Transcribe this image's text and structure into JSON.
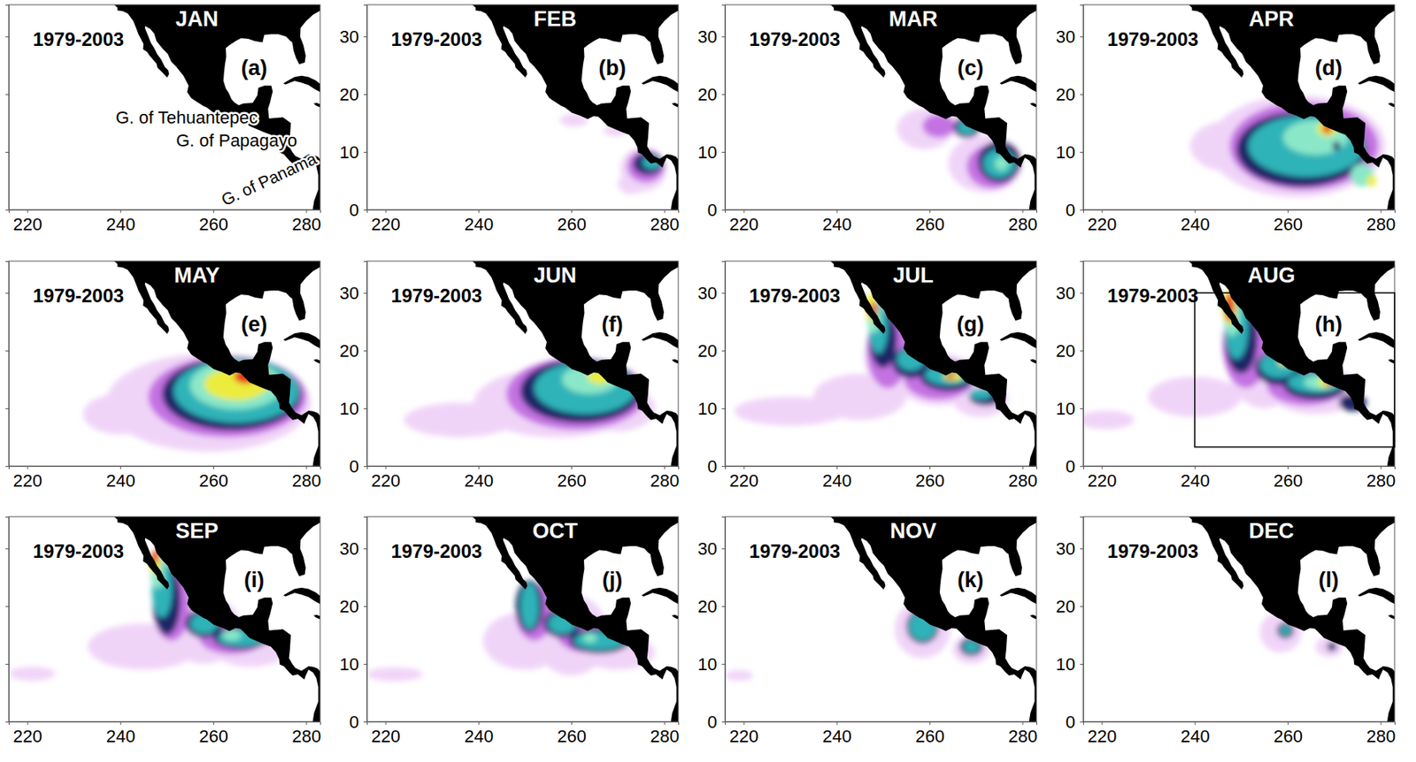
{
  "chart_data": [
    {
      "type": "map",
      "title": "JAN",
      "subtitle": "1979-2003",
      "panel_label": "(a)",
      "xlim": [
        216,
        283
      ],
      "ylim": [
        0,
        35.5
      ],
      "xticks": [
        220,
        240,
        260,
        280
      ],
      "yticks": [
        0,
        10,
        20,
        30
      ],
      "tick_labels": "x",
      "annotations": [
        {
          "text": "G. of Tehuantepec",
          "x": 239,
          "y": 15
        },
        {
          "text": "G. of Papagayo",
          "x": 252,
          "y": 11
        },
        {
          "text": "G. of Panama",
          "x": 262.5,
          "y": 0.6
        }
      ],
      "blobs": {
        "lon": [],
        "lat": [],
        "rx": [],
        "ry": [],
        "level": []
      }
    },
    {
      "type": "map",
      "title": "FEB",
      "subtitle": "1979-2003",
      "panel_label": "(b)",
      "xlim": [
        216,
        283
      ],
      "ylim": [
        0,
        35.5
      ],
      "xticks": [
        220,
        240,
        260,
        280
      ],
      "yticks": [
        0,
        10,
        20,
        30
      ],
      "blobs": {
        "lon": [
          260.5,
          269.5,
          275.5,
          273,
          276,
          276.5,
          277.3
        ],
        "lat": [
          15.5,
          13.7,
          7,
          4.5,
          7.5,
          8,
          8.2
        ],
        "rx": [
          3,
          2.5,
          5,
          3,
          4,
          3.2,
          2
        ],
        "ry": [
          1.1,
          1,
          3.8,
          1.8,
          2.8,
          2,
          1.2
        ],
        "level": [
          1,
          1,
          1,
          1,
          2,
          3,
          4
        ]
      }
    },
    {
      "type": "map",
      "title": "MAR",
      "subtitle": "1979-2003",
      "panel_label": "(c)",
      "xlim": [
        216,
        283
      ],
      "ylim": [
        0,
        35.5
      ],
      "xticks": [
        220,
        240,
        260,
        280
      ],
      "yticks": [
        0,
        10,
        20,
        30
      ],
      "blobs": {
        "lon": [
          259,
          262,
          272,
          267.5,
          262,
          273.5,
          268,
          275,
          268,
          275,
          275.5
        ],
        "lat": [
          14,
          17,
          8,
          14.5,
          14.5,
          7.5,
          14.3,
          8.3,
          14.3,
          8,
          8
        ],
        "rx": [
          6,
          3,
          8,
          3.5,
          3.5,
          5.5,
          2.8,
          4.6,
          2,
          3.5,
          1.5
        ],
        "ry": [
          3.5,
          1.5,
          5,
          2.2,
          2,
          3.8,
          1.8,
          3.6,
          1.3,
          2.5,
          1.2
        ],
        "level": [
          1,
          1,
          1,
          1,
          2,
          2,
          3,
          3,
          4,
          4,
          5
        ]
      }
    },
    {
      "type": "map",
      "title": "APR",
      "subtitle": "1979-2003",
      "panel_label": "(d)",
      "xlim": [
        216,
        283
      ],
      "ylim": [
        0,
        35.5
      ],
      "xticks": [
        220,
        240,
        260,
        280
      ],
      "yticks": [
        0,
        10,
        20,
        30
      ],
      "blobs": {
        "lon": [
          262,
          248,
          263.5,
          263,
          264,
          266,
          276,
          268.5,
          278,
          268.5,
          270.5
        ],
        "lat": [
          11,
          11,
          11,
          10.5,
          11,
          12.5,
          6,
          14,
          5,
          14,
          11
        ],
        "rx": [
          19,
          9,
          16,
          14,
          12.5,
          7,
          2.5,
          2.2,
          1,
          1,
          0.8
        ],
        "ry": [
          8.8,
          4.5,
          7.6,
          6.5,
          5.3,
          3,
          2,
          1.3,
          1,
          0.8,
          0.8
        ],
        "level": [
          1,
          1,
          2,
          3,
          4,
          5,
          5,
          6,
          6,
          7,
          3
        ]
      }
    },
    {
      "type": "map",
      "title": "MAY",
      "subtitle": "1979-2003",
      "panel_label": "(e)",
      "xlim": [
        216,
        283
      ],
      "ylim": [
        0,
        35.5
      ],
      "xticks": [
        220,
        240,
        260,
        280
      ],
      "yticks": [
        0,
        10,
        20,
        30
      ],
      "tick_labels": "x",
      "blobs": {
        "lon": [
          259,
          240,
          263,
          264,
          265,
          265,
          265,
          267,
          271
        ],
        "lat": [
          11,
          9,
          12,
          12.5,
          13,
          14,
          14.2,
          15.5,
          15
        ],
        "rx": [
          22,
          8,
          17,
          15,
          13.5,
          10,
          7,
          2.5,
          1.5
        ],
        "ry": [
          8.5,
          3.5,
          7,
          6.3,
          5.5,
          4.2,
          2.8,
          1.2,
          1
        ],
        "level": [
          1,
          1,
          2,
          3,
          4,
          5,
          6,
          7,
          7
        ]
      }
    },
    {
      "type": "map",
      "title": "JUN",
      "subtitle": "1979-2003",
      "panel_label": "(f)",
      "xlim": [
        216,
        283
      ],
      "ylim": [
        0,
        35.5
      ],
      "xticks": [
        220,
        240,
        260,
        280
      ],
      "yticks": [
        0,
        10,
        20,
        30
      ],
      "blobs": {
        "lon": [
          257,
          236,
          270,
          261,
          262,
          263,
          264,
          266
        ],
        "lat": [
          11,
          8,
          10,
          12.5,
          13,
          13.5,
          15,
          15.5
        ],
        "rx": [
          18,
          12,
          8,
          15,
          13,
          11,
          6,
          2.5
        ],
        "ry": [
          6,
          3,
          4,
          6.2,
          5.5,
          4.5,
          2.5,
          1.3
        ],
        "level": [
          1,
          1,
          1,
          2,
          3,
          4,
          5,
          6
        ]
      }
    },
    {
      "type": "map",
      "title": "JUL",
      "subtitle": "1979-2003",
      "panel_label": "(g)",
      "xlim": [
        216,
        283
      ],
      "ylim": [
        0,
        35.5
      ],
      "xticks": [
        220,
        240,
        260,
        280
      ],
      "yticks": [
        0,
        10,
        20,
        30
      ],
      "blobs": {
        "lon": [
          230,
          245,
          252,
          262,
          271,
          251,
          262,
          250,
          256,
          264,
          272,
          249,
          256,
          264,
          271,
          248,
          247.5,
          265,
          248,
          264.5
        ],
        "lat": [
          9.5,
          12,
          19,
          15,
          11.5,
          20,
          15,
          22,
          18,
          15.5,
          12,
          24,
          18.5,
          15.8,
          12.5,
          26,
          27.5,
          15.5,
          27,
          15.5
        ],
        "rx": [
          12,
          10,
          6,
          9,
          6,
          4.5,
          7.5,
          3,
          4,
          6,
          3.5,
          2,
          3,
          5,
          2.5,
          1.5,
          1.2,
          2,
          0.7,
          0.8
        ],
        "ry": [
          2.5,
          4,
          6,
          4.5,
          3,
          6.5,
          3.5,
          5,
          2.8,
          2.5,
          1.5,
          4.5,
          2,
          1.8,
          1,
          3,
          2.5,
          0.8,
          1.5,
          0.5
        ],
        "level": [
          1,
          1,
          1,
          1,
          1,
          2,
          2,
          3,
          3,
          3,
          3,
          4,
          4,
          4,
          4,
          5,
          6,
          6,
          7,
          7
        ]
      }
    },
    {
      "type": "map",
      "title": "AUG",
      "subtitle": "1979-2003",
      "panel_label": "(h)",
      "xlim": [
        216,
        283
      ],
      "ylim": [
        0,
        35.5
      ],
      "xticks": [
        220,
        240,
        260,
        280
      ],
      "yticks": [
        0,
        10,
        20,
        30
      ],
      "box": {
        "x": [
          240,
          283
        ],
        "y": [
          3.3,
          30
        ]
      },
      "blobs": {
        "lon": [
          221,
          240,
          255,
          266,
          251,
          264,
          250,
          258,
          266,
          274,
          249,
          258,
          266,
          248,
          267,
          247.5,
          268,
          259,
          247.5,
          269
        ],
        "lat": [
          8,
          12,
          18,
          13,
          21,
          14,
          22,
          17,
          14,
          11,
          24,
          17.5,
          14.5,
          26,
          14.5,
          27.5,
          14.5,
          18,
          27.5,
          14.3
        ],
        "rx": [
          6,
          10,
          8,
          10,
          5,
          8.5,
          3.5,
          5,
          7,
          3,
          2.5,
          4,
          6,
          1.8,
          3.5,
          1.5,
          1.5,
          1,
          1,
          0.8
        ],
        "ry": [
          1.6,
          3.5,
          8,
          4,
          7.5,
          3.5,
          6,
          3,
          2.5,
          1.5,
          5.5,
          2.2,
          1.8,
          3.5,
          1.2,
          3,
          0.8,
          0.7,
          2.5,
          0.5
        ],
        "level": [
          1,
          1,
          1,
          1,
          2,
          2,
          3,
          3,
          3,
          3,
          4,
          4,
          4,
          5,
          5,
          6,
          6,
          6,
          7,
          7
        ]
      }
    },
    {
      "type": "map",
      "title": "SEP",
      "subtitle": "1979-2003",
      "panel_label": "(i)",
      "xlim": [
        216,
        283
      ],
      "ylim": [
        0,
        35.5
      ],
      "xticks": [
        220,
        240,
        260,
        280
      ],
      "yticks": [
        0,
        10,
        20,
        30
      ],
      "tick_labels": "x",
      "blobs": {
        "lon": [
          221,
          245,
          258,
          268,
          251,
          264,
          250,
          258,
          266,
          249,
          258,
          266,
          248,
          264,
          247.5,
          247.5
        ],
        "lat": [
          8.3,
          13,
          16,
          12.5,
          20,
          14.5,
          21,
          17,
          14.5,
          23,
          17,
          14.5,
          26,
          15,
          27.5,
          28.5
        ],
        "rx": [
          5,
          12,
          8,
          8,
          4,
          7,
          3,
          4,
          6,
          2.2,
          3,
          5,
          1.5,
          2,
          1.2,
          0.8
        ],
        "ry": [
          1.2,
          4,
          6,
          3,
          6,
          2.8,
          6,
          2.5,
          2,
          5,
          1.8,
          1.5,
          3,
          1,
          2,
          1.2
        ],
        "level": [
          1,
          1,
          1,
          1,
          2,
          2,
          3,
          3,
          3,
          4,
          4,
          4,
          5,
          5,
          6,
          7
        ]
      }
    },
    {
      "type": "map",
      "title": "OCT",
      "subtitle": "1979-2003",
      "panel_label": "(j)",
      "xlim": [
        216,
        283
      ],
      "ylim": [
        0,
        35.5
      ],
      "xticks": [
        220,
        240,
        260,
        280
      ],
      "yticks": [
        0,
        10,
        20,
        30
      ],
      "blobs": {
        "lon": [
          222,
          250,
          260,
          270,
          252,
          263,
          251,
          258,
          266,
          251,
          258,
          266,
          264
        ],
        "lat": [
          8.2,
          14,
          15,
          12,
          19,
          15,
          20,
          17,
          14,
          20,
          17,
          14,
          14.5
        ],
        "rx": [
          6,
          9,
          8,
          8,
          4,
          6,
          3,
          4,
          6.5,
          2,
          3,
          5.5,
          1.5
        ],
        "ry": [
          1.2,
          5,
          7,
          3,
          5,
          3,
          4.5,
          2.5,
          2.2,
          4,
          1.8,
          1.6,
          0.8
        ],
        "level": [
          1,
          1,
          1,
          1,
          2,
          2,
          3,
          3,
          3,
          4,
          4,
          4,
          5
        ]
      }
    },
    {
      "type": "map",
      "title": "NOV",
      "subtitle": "1979-2003",
      "panel_label": "(k)",
      "xlim": [
        216,
        283
      ],
      "ylim": [
        0,
        35.5
      ],
      "xticks": [
        220,
        240,
        260,
        280
      ],
      "yticks": [
        0,
        10,
        20,
        30
      ],
      "blobs": {
        "lon": [
          219,
          258.5,
          269,
          258.5,
          269,
          258.5,
          269
        ],
        "lat": [
          8,
          16,
          12.5,
          16.5,
          13,
          16.5,
          13
        ],
        "rx": [
          3,
          6,
          4,
          3.5,
          2.5,
          3,
          1.8
        ],
        "ry": [
          0.9,
          5,
          2.5,
          3,
          1.6,
          2.5,
          1.1
        ],
        "level": [
          1,
          1,
          1,
          3,
          3,
          4,
          4
        ]
      }
    },
    {
      "type": "map",
      "title": "DEC",
      "subtitle": "1979-2003",
      "panel_label": "(l)",
      "xlim": [
        216,
        283
      ],
      "ylim": [
        0,
        35.5
      ],
      "xticks": [
        220,
        240,
        260,
        280
      ],
      "yticks": [
        0,
        10,
        20,
        30
      ],
      "blobs": {
        "lon": [
          258.5,
          269,
          259.5,
          269.5,
          259.5
        ],
        "lat": [
          15.5,
          13,
          15.8,
          13,
          15.8
        ],
        "rx": [
          4.5,
          3,
          1.8,
          1,
          1.2
        ],
        "ry": [
          3.5,
          1.8,
          1.4,
          0.8,
          0.9
        ],
        "level": [
          1,
          1,
          3,
          3,
          4
        ]
      }
    }
  ]
}
